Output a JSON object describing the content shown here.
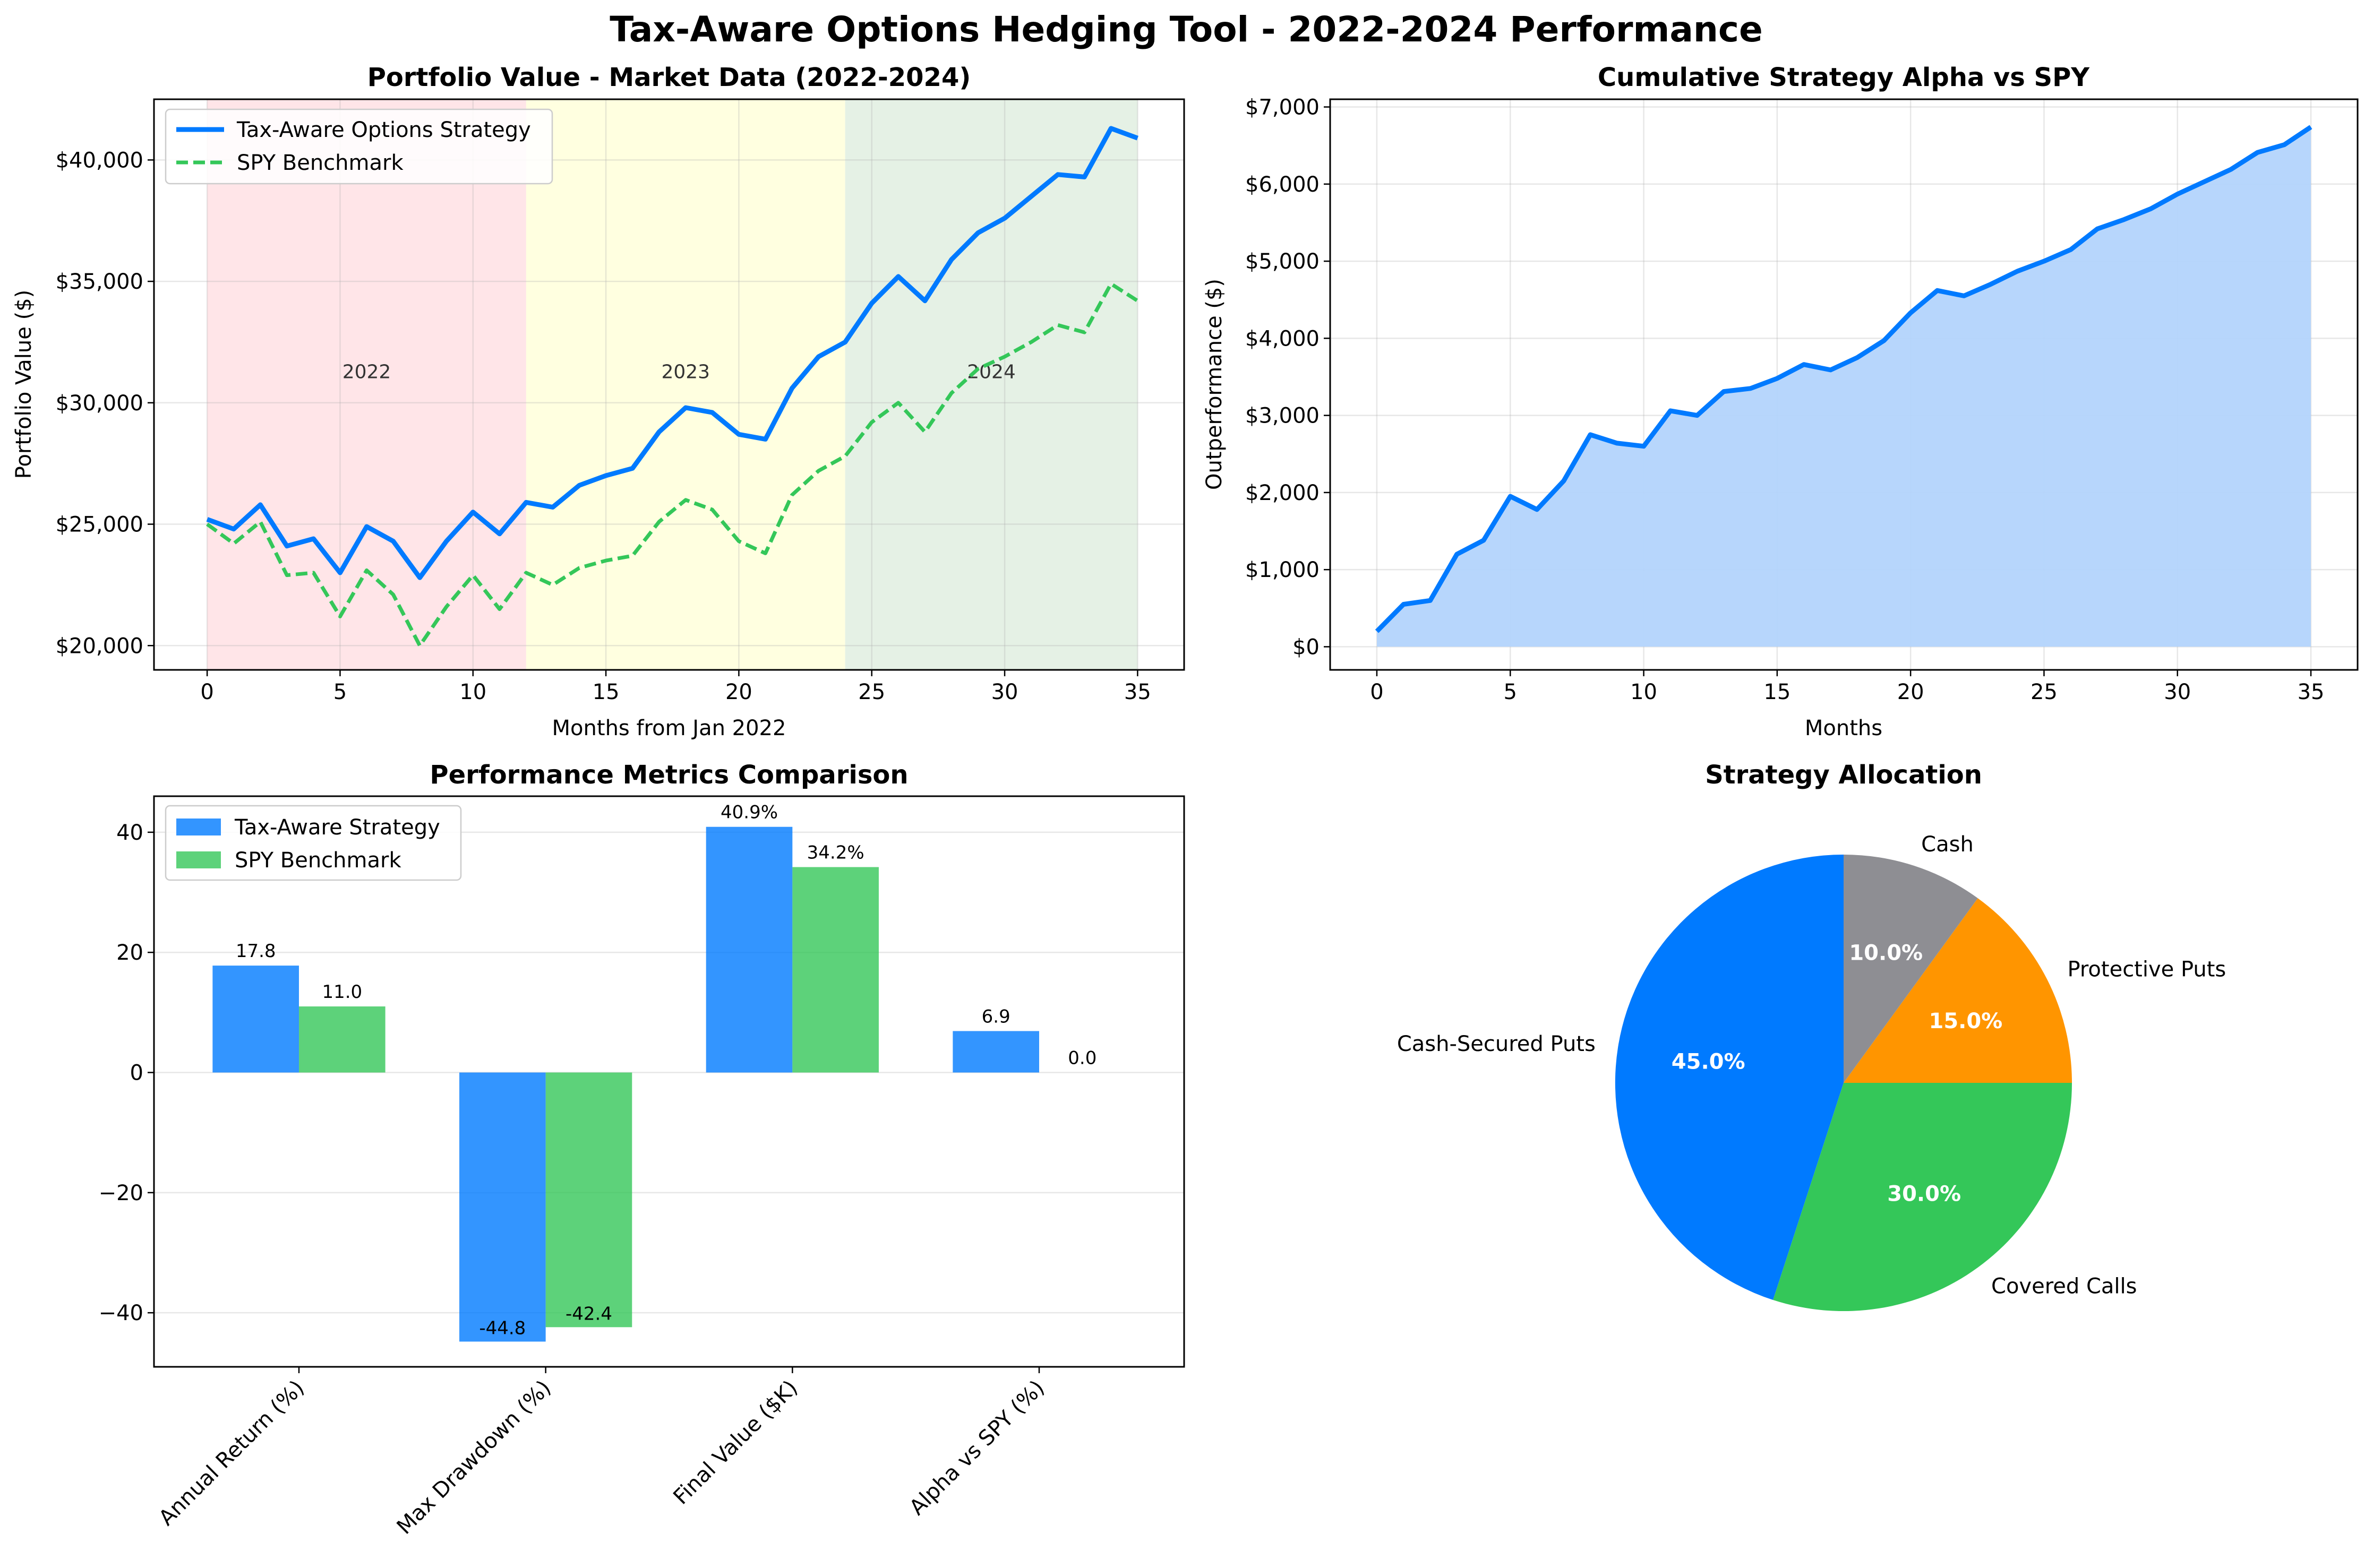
{
  "title": "Tax-Aware Options Hedging Tool - 2022-2024 Performance",
  "colors": {
    "strategy": "#007aff",
    "benchmark": "#34c759",
    "alpha_fill": "#b3d4fc",
    "y2022": "#ffe5e8",
    "y2023": "#ffffe0",
    "y2024": "#e5f1e5",
    "pie": [
      "#007aff",
      "#34c759",
      "#ff9500",
      "#8e8e93"
    ]
  },
  "chart_data": [
    {
      "type": "line",
      "title": "Portfolio Value - Market Data (2022-2024)",
      "xlabel": "Months from Jan 2022",
      "ylabel": "Portfolio Value ($)",
      "xlim": [
        -2,
        36.75
      ],
      "ylim": [
        19000,
        42500
      ],
      "x_ticks": [
        0,
        5,
        10,
        15,
        20,
        25,
        30,
        35
      ],
      "y_ticks": [
        20000,
        25000,
        30000,
        35000,
        40000
      ],
      "y_tick_labels": [
        "$20,000",
        "$25,000",
        "$30,000",
        "$35,000",
        "$40,000"
      ],
      "grid": true,
      "legend": "upper left",
      "regions": [
        {
          "label": "2022",
          "x_start": 0,
          "x_end": 12
        },
        {
          "label": "2023",
          "x_start": 12,
          "x_end": 24
        },
        {
          "label": "2024",
          "x_start": 24,
          "x_end": 35
        }
      ],
      "x": [
        0,
        1,
        2,
        3,
        4,
        5,
        6,
        7,
        8,
        9,
        10,
        11,
        12,
        13,
        14,
        15,
        16,
        17,
        18,
        19,
        20,
        21,
        22,
        23,
        24,
        25,
        26,
        27,
        28,
        29,
        30,
        31,
        32,
        33,
        34,
        35
      ],
      "series": [
        {
          "name": "Tax-Aware Options Strategy",
          "style": "solid",
          "values": [
            25200,
            24800,
            25800,
            24100,
            24400,
            23000,
            24900,
            24300,
            22800,
            24300,
            25500,
            24600,
            25900,
            25700,
            26600,
            27000,
            27300,
            28800,
            29800,
            29600,
            28700,
            28500,
            30600,
            31900,
            32500,
            34100,
            35200,
            34200,
            35900,
            37000,
            37600,
            38500,
            39400,
            39300,
            41300,
            40900
          ]
        },
        {
          "name": "SPY Benchmark",
          "style": "dashed",
          "values": [
            25000,
            24200,
            25100,
            22900,
            23000,
            21200,
            23100,
            22100,
            20000,
            21600,
            22900,
            21500,
            23000,
            22500,
            23200,
            23500,
            23700,
            25100,
            26000,
            25600,
            24300,
            23800,
            26200,
            27200,
            27800,
            29200,
            30000,
            28800,
            30400,
            31400,
            31900,
            32500,
            33200,
            32900,
            34900,
            34200
          ]
        }
      ]
    },
    {
      "type": "area",
      "title": "Cumulative Strategy Alpha vs SPY",
      "xlabel": "Months",
      "ylabel": "Outperformance ($)",
      "xlim": [
        -1.75,
        36.75
      ],
      "ylim": [
        -300,
        7100
      ],
      "x_ticks": [
        0,
        5,
        10,
        15,
        20,
        25,
        30,
        35
      ],
      "y_ticks": [
        0,
        1000,
        2000,
        3000,
        4000,
        5000,
        6000,
        7000
      ],
      "y_tick_labels": [
        "$0",
        "$1,000",
        "$2,000",
        "$3,000",
        "$4,000",
        "$5,000",
        "$6,000",
        "$7,000"
      ],
      "grid": true,
      "x": [
        0,
        1,
        2,
        3,
        4,
        5,
        6,
        7,
        8,
        9,
        10,
        11,
        12,
        13,
        14,
        15,
        16,
        17,
        18,
        19,
        20,
        21,
        22,
        23,
        24,
        25,
        26,
        27,
        28,
        29,
        30,
        31,
        32,
        33,
        34,
        35
      ],
      "values": [
        200,
        550,
        600,
        1200,
        1380,
        1950,
        1780,
        2150,
        2750,
        2640,
        2600,
        3060,
        3000,
        3310,
        3350,
        3480,
        3660,
        3590,
        3750,
        3970,
        4330,
        4620,
        4550,
        4700,
        4870,
        5000,
        5150,
        5420,
        5540,
        5680,
        5870,
        6030,
        6190,
        6410,
        6510,
        6740
      ]
    },
    {
      "type": "bar",
      "title": "Performance Metrics Comparison",
      "categories": [
        "Annual Return (%)",
        "Max Drawdown (%)",
        "Final Value ($K)",
        "Alpha vs SPY (%)"
      ],
      "ylim": [
        -49,
        46
      ],
      "y_ticks": [
        -40,
        -20,
        0,
        20,
        40
      ],
      "y_tick_labels": [
        "−40",
        "−20",
        "0",
        "20",
        "40"
      ],
      "grid": true,
      "legend": "upper left",
      "series": [
        {
          "name": "Tax-Aware Strategy",
          "values": [
            17.8,
            -44.8,
            40.9,
            6.9
          ],
          "labels": [
            "17.8",
            "-44.8",
            "40.9%",
            "6.9"
          ]
        },
        {
          "name": "SPY Benchmark",
          "values": [
            11.0,
            -42.4,
            34.2,
            0.0
          ],
          "labels": [
            "11.0",
            "-42.4",
            "34.2%",
            "0.0"
          ]
        }
      ]
    },
    {
      "type": "pie",
      "title": "Strategy Allocation",
      "start_angle": 90,
      "direction": "counterclockwise",
      "slices": [
        {
          "label": "Cash-Secured Puts",
          "value": 45.0,
          "pct": "45.0%"
        },
        {
          "label": "Covered Calls",
          "value": 30.0,
          "pct": "30.0%"
        },
        {
          "label": "Protective Puts",
          "value": 15.0,
          "pct": "15.0%"
        },
        {
          "label": "Cash",
          "value": 10.0,
          "pct": "10.0%"
        }
      ]
    }
  ]
}
